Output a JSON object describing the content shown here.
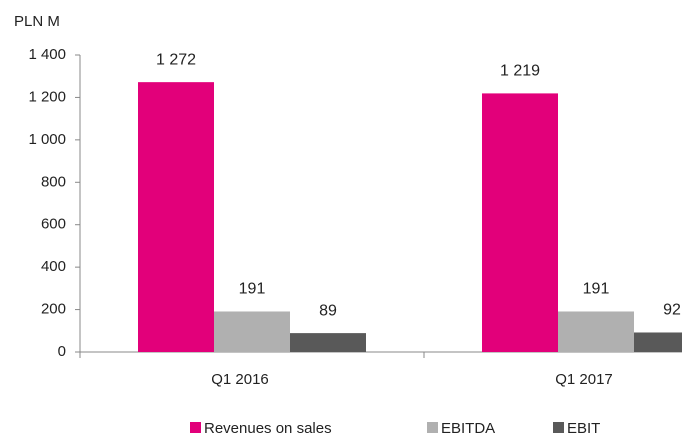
{
  "chart_data": {
    "type": "bar",
    "y_label": "PLN M",
    "categories": [
      "Q1 2016",
      "Q1 2017"
    ],
    "series": [
      {
        "name": "Revenues on sales",
        "color": "#e2007a",
        "values": [
          1272,
          1219
        ],
        "value_labels": [
          "1 272",
          "1 219"
        ]
      },
      {
        "name": "EBITDA",
        "color": "#b0b0b0",
        "values": [
          191,
          191
        ]
      },
      {
        "name": "EBIT",
        "color": "#595959",
        "values": [
          89,
          92
        ]
      }
    ],
    "ylim": [
      0,
      1400
    ],
    "yticks": [
      0,
      200,
      400,
      600,
      800,
      {
        "value": 1000,
        "label": "1 000"
      },
      {
        "value": 1200,
        "label": "1 200"
      },
      {
        "value": 1400,
        "label": "1 400"
      }
    ],
    "legend": "bottom",
    "grid": false
  }
}
